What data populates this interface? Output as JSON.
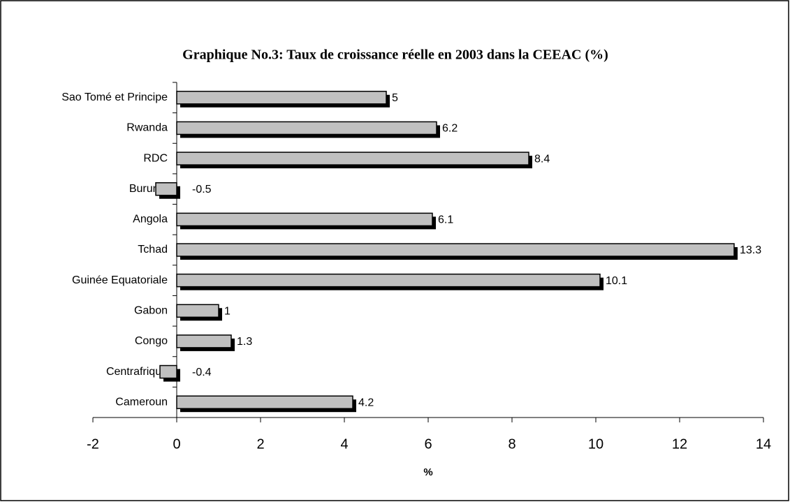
{
  "chart_data": {
    "type": "bar",
    "orientation": "horizontal",
    "title": "Graphique No.3: Taux de croissance réelle en 2003 dans la CEEAC (%)",
    "x_label": "%",
    "categories": [
      "Sao Tomé et Principe",
      "Rwanda",
      "RDC",
      "Burundi",
      "Angola",
      "Tchad",
      "Guinée Equatoriale",
      "Gabon",
      "Congo",
      "Centrafrique",
      "Cameroun"
    ],
    "values": [
      5,
      6.2,
      8.4,
      -0.5,
      6.1,
      13.3,
      10.1,
      1,
      1.3,
      -0.4,
      4.2
    ],
    "color": "#c0c0c0",
    "shadow_color": "#000000",
    "xlim": [
      -2,
      14
    ],
    "xticks": [
      -2,
      0,
      2,
      4,
      6,
      8,
      10,
      12,
      14
    ],
    "grid": false
  }
}
